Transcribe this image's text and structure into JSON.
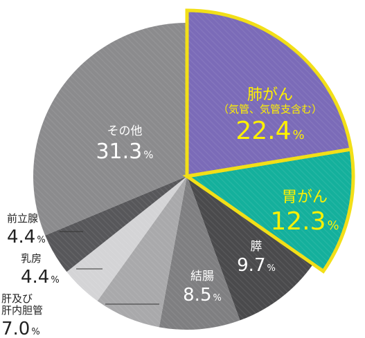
{
  "chart_data": {
    "type": "pie",
    "unit": "%",
    "colors": {
      "highlight_stroke": "#f2df18",
      "label_dark_fill": "#222222",
      "label_light_fill": "#ffffff",
      "label_highlight_fill": "#fff100"
    },
    "slices": [
      {
        "label": "肺がん",
        "sublabel": "（気管、気管支含む）",
        "value": 22.4,
        "value_text": "22.4",
        "color": "#7b6bb8",
        "highlight": true,
        "label_style": "highlight"
      },
      {
        "label": "胃がん",
        "sublabel": "",
        "value": 12.3,
        "value_text": "12.3",
        "color": "#14b09c",
        "highlight": true,
        "label_style": "highlight"
      },
      {
        "label": "膵",
        "sublabel": "",
        "value": 9.7,
        "value_text": "9.7",
        "color": "#4a4a4c",
        "highlight": false,
        "label_style": "light"
      },
      {
        "label": "結腸",
        "sublabel": "",
        "value": 8.5,
        "value_text": "8.5",
        "color": "#7f7f81",
        "highlight": false,
        "label_style": "light"
      },
      {
        "label": "肝及び\n肝内胆管",
        "sublabel": "",
        "value": 7.0,
        "value_text": "7.0",
        "color": "#a9a9ab",
        "highlight": false,
        "label_style": "outside"
      },
      {
        "label": "乳房",
        "sublabel": "",
        "value": 4.4,
        "value_text": "4.4",
        "color": "#d4d4d6",
        "highlight": false,
        "label_style": "outside"
      },
      {
        "label": "前立腺",
        "sublabel": "",
        "value": 4.4,
        "value_text": "4.4",
        "color": "#57575a",
        "highlight": false,
        "label_style": "outside"
      },
      {
        "label": "その他",
        "sublabel": "",
        "value": 31.3,
        "value_text": "31.3",
        "color": "#8b8b8d",
        "highlight": false,
        "label_style": "light"
      }
    ]
  }
}
